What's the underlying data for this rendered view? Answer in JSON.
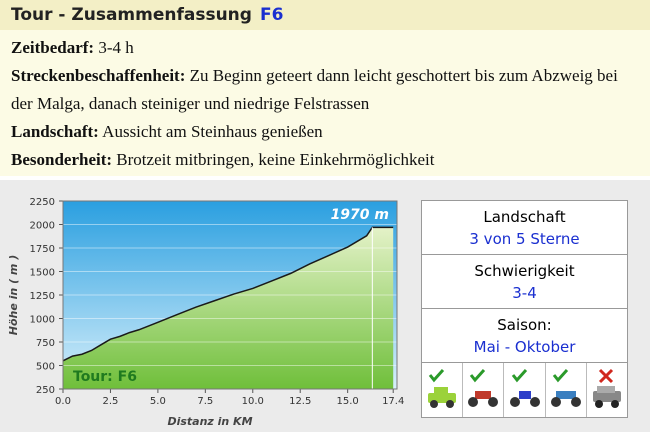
{
  "header": {
    "title": "Tour - Zusammenfassung",
    "code": "F6"
  },
  "details": [
    {
      "label": "Zeitbedarf:",
      "text": "3-4 h"
    },
    {
      "label": "Streckenbeschaffenheit:",
      "text": "Zu Beginn geteert dann leicht geschottert bis zum Abzweig bei der Malga, danach steiniger und niedrige Felstrassen"
    },
    {
      "label": "Landschaft:",
      "text": "Aussicht am Steinhaus genießen"
    },
    {
      "label": "Besonderheit:",
      "text": "Brotzeit mitbringen, keine Einkehrmöglichkeit"
    }
  ],
  "chart_data": {
    "type": "area",
    "xlabel": "Distanz in KM",
    "ylabel": "Höhe in ( m )",
    "annotation": "1970 m",
    "tour_label": "Tour: F6",
    "x": [
      0,
      0.5,
      1,
      1.5,
      2,
      2.5,
      3,
      3.5,
      4,
      5,
      6,
      7,
      8,
      9,
      10,
      11,
      12,
      13,
      14,
      15,
      16,
      16.3,
      17.4
    ],
    "values": [
      550,
      600,
      620,
      660,
      720,
      780,
      810,
      850,
      880,
      960,
      1040,
      1120,
      1190,
      1260,
      1320,
      1400,
      1480,
      1580,
      1670,
      1760,
      1880,
      1970,
      1970
    ],
    "xlim": [
      0,
      17.6
    ],
    "ylim": [
      250,
      2250
    ],
    "xticks": [
      {
        "value": 0,
        "label": "0.0"
      },
      2.5,
      {
        "value": 5,
        "label": "5.0"
      },
      7.5,
      {
        "value": 10,
        "label": "10.0"
      },
      12.5,
      {
        "value": 15,
        "label": "15.0"
      },
      17.4
    ],
    "yticks": [
      250,
      500,
      750,
      1000,
      1250,
      1500,
      1750,
      2000,
      2250
    ],
    "grid": true,
    "color": "#1a1a1a"
  },
  "info": [
    {
      "label": "Landschaft",
      "value": "3 von 5 Sterne"
    },
    {
      "label": "Schwierigkeit",
      "value": "3-4"
    },
    {
      "label": "Saison:",
      "value": "Mai - Oktober"
    }
  ]
}
